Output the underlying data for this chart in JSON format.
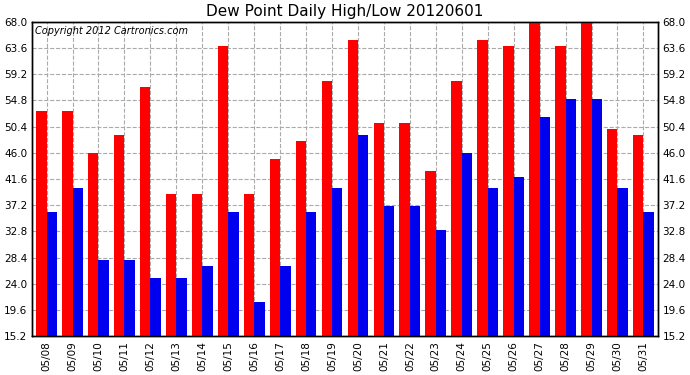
{
  "title": "Dew Point Daily High/Low 20120601",
  "copyright": "Copyright 2012 Cartronics.com",
  "dates": [
    "05/08",
    "05/09",
    "05/10",
    "05/11",
    "05/12",
    "05/13",
    "05/14",
    "05/15",
    "05/16",
    "05/17",
    "05/18",
    "05/19",
    "05/20",
    "05/21",
    "05/22",
    "05/23",
    "05/24",
    "05/25",
    "05/26",
    "05/27",
    "05/28",
    "05/29",
    "05/30",
    "05/31"
  ],
  "highs": [
    53.0,
    53.0,
    46.0,
    49.0,
    57.0,
    39.0,
    39.0,
    64.0,
    39.0,
    45.0,
    48.0,
    58.0,
    65.0,
    51.0,
    51.0,
    43.0,
    58.0,
    65.0,
    64.0,
    68.0,
    64.0,
    68.0,
    50.0,
    49.0
  ],
  "lows": [
    36.0,
    40.0,
    28.0,
    28.0,
    25.0,
    25.0,
    27.0,
    36.0,
    21.0,
    27.0,
    36.0,
    40.0,
    49.0,
    37.0,
    37.0,
    33.0,
    46.0,
    40.0,
    42.0,
    52.0,
    55.0,
    55.0,
    40.0,
    36.0
  ],
  "high_color": "#ff0000",
  "low_color": "#0000ee",
  "bg_color": "#ffffff",
  "plot_bg": "#ffffff",
  "grid_color": "#aaaaaa",
  "yticks": [
    15.2,
    19.6,
    24.0,
    28.4,
    32.8,
    37.2,
    41.6,
    46.0,
    50.4,
    54.8,
    59.2,
    63.6,
    68.0
  ],
  "ymin": 15.2,
  "ymax": 68.0,
  "title_fontsize": 11,
  "tick_fontsize": 7.5,
  "copyright_fontsize": 7
}
